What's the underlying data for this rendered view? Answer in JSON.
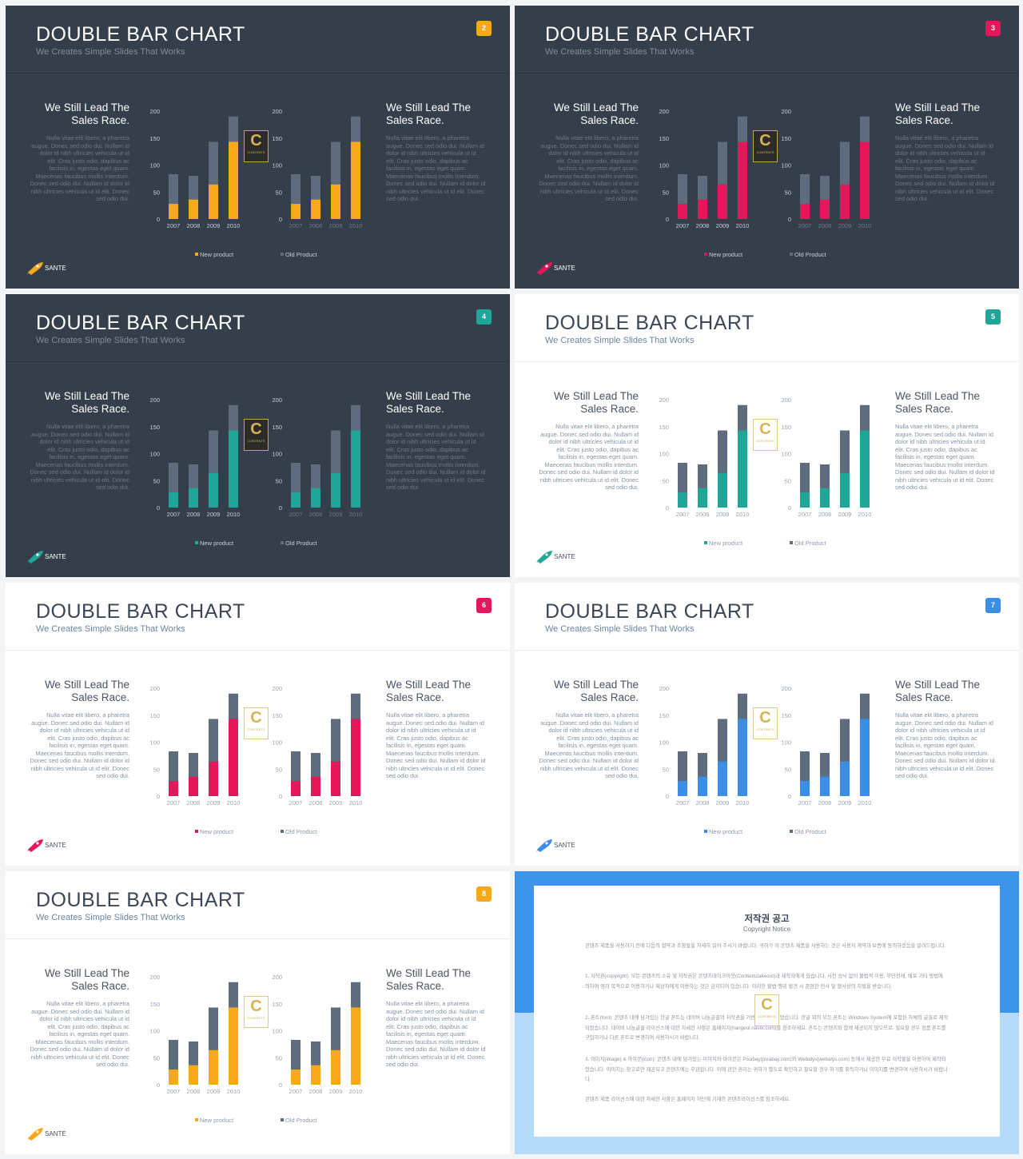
{
  "slides": [
    {
      "id": "slide-2",
      "badge": "2",
      "theme": "dark",
      "accent": "#f7a81b"
    },
    {
      "id": "slide-3",
      "badge": "3",
      "theme": "dark",
      "accent": "#e4175b"
    },
    {
      "id": "slide-4",
      "badge": "4",
      "theme": "dark",
      "accent": "#1fa698"
    },
    {
      "id": "slide-5",
      "badge": "5",
      "theme": "light",
      "accent": "#1fa698"
    },
    {
      "id": "slide-6",
      "badge": "6",
      "theme": "light",
      "accent": "#e4175b"
    },
    {
      "id": "slide-7",
      "badge": "7",
      "theme": "light",
      "accent": "#3a8ee6"
    },
    {
      "id": "slide-8",
      "badge": "8",
      "theme": "light",
      "accent": "#f7a81b"
    }
  ],
  "common": {
    "title": "DOUBLE BAR CHART",
    "subtitle": "We Creates Simple Slides That Works",
    "side_heading": "We Still Lead The Sales Race.",
    "side_body": "Nulla vitae elit libero, a pharetra augue. Donec sed odio dui. Nullam id dolor id nibh ultricies vehicula ut id elit. Cras justo odio, dapibus ac facilisis in, egestas eget quam. Maecenas faucibus mollis interdum. Donec sed odio dui. Nullam id dolor id nibh ultricies vehicula ut id elit. Donec sed odio dui.",
    "brand": "SANTE",
    "logo_letter": "C",
    "logo_text": "CONTENTS"
  },
  "chart_data": {
    "type": "bar",
    "categories": [
      "2007",
      "2008",
      "2009",
      "2010"
    ],
    "series": [
      {
        "name": "New product",
        "values": [
          28,
          36,
          64,
          143
        ]
      },
      {
        "name": "Old Product",
        "values": [
          83,
          80,
          143,
          190
        ]
      }
    ],
    "ylim": [
      0,
      200
    ],
    "yticks": [
      "0",
      "50",
      "100",
      "150",
      "200"
    ],
    "old_color": "#5f6c7e"
  },
  "copyright": {
    "title": "저작권 공고",
    "subtitle": "Copyright Notice",
    "paragraphs": [
      "콘텐츠 제품을 사용하기 전에 다음의 협약과 조항들을 자세히 읽어 주시기 바랍니다. 귀하가 이 콘텐츠 제품을 사용하는 것은 사용자 계약과 보증에 동의하셨음을 알려드립니다.",
      "1. 저작권(copyright): 모든 콘텐츠의 소유 및 저작권은 콘텐츠테이크아웃(Contentstakeout)과 제작자에게 있습니다. 사전 승낙 없이 불법적 이용, 무단전재, 배포 기타 방법에 의하여 영리 목적으로 이용하거나 제삼자에게 이용하는 것은 금지되어 있습니다. 이러한 불법 행위 발견 시 준엄한 민사 및 형사상의 처벌을 받습니다.",
      "2. 폰트(font): 콘텐츠 내에 담겨있는 한글 폰트는 네이버 나눔글꼴의 저작권을 기반하여 제작되었습니다. 한글 외의 모든 폰트는 Windows System에 포함된 자체의 글꼴로 제작되었습니다. 네이버 나눔글꼴 라이선스에 대한 자세한 사항은 홈페이지(hangeul.naver.com)를 참조하세요. 폰트는 콘텐츠와 함께 제공되지 않으므로, 필요할 경우 정품 폰트를 구입하거나 다른 폰트로 변경하여 사용하시기 바랍니다.",
      "3. 이미지(image) & 아이콘(icon): 콘텐츠 내에 담겨있는 이미지와 아이콘은 Pixabay(pixabay.com)와 Webalys(webalys.com) 등에서 제공한 무료 저작물을 이용하여 제작되었습니다. 이미지는 참고로만 제공되고 콘텐츠에는 무관합니다. 이에 관한 권리는 귀하가 별도로 확인하고 필요할 경우 허가를 취득하거나 이미지를 변경하여 사용하시기 바랍니다.",
      "콘텐츠 제품 라이선스에 대한 자세한 사항은 홈페이지 하단에 기재한 콘텐츠라이선스를 참조하세요."
    ]
  }
}
